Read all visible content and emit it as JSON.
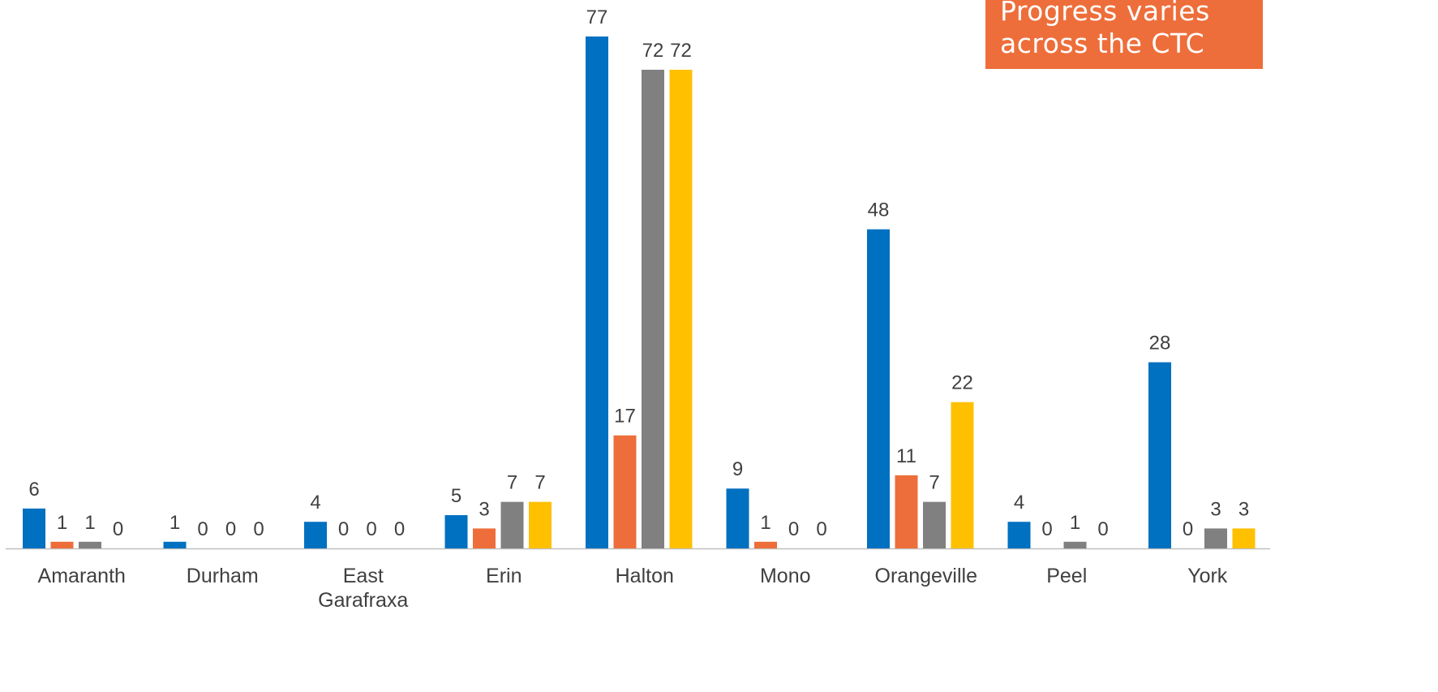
{
  "callout": {
    "line1": "Progress varies",
    "line2": "across the CTC"
  },
  "colors": {
    "series": [
      "#0070C0",
      "#ED6E3A",
      "#808080",
      "#FFC000"
    ],
    "axis": "#BFBFBF",
    "label": "#404040"
  },
  "chart_data": {
    "type": "bar",
    "title": "",
    "xlabel": "",
    "ylabel": "",
    "grid": false,
    "ylim": [
      0,
      77
    ],
    "categories": [
      "Amaranth",
      "Durham",
      "East Garafraxa",
      "Erin",
      "Halton",
      "Mono",
      "Orangeville",
      "Peel",
      "York"
    ],
    "series": [
      {
        "values": [
          6,
          1,
          4,
          5,
          77,
          9,
          48,
          4,
          28
        ]
      },
      {
        "values": [
          1,
          0,
          0,
          3,
          17,
          1,
          11,
          0,
          0
        ]
      },
      {
        "values": [
          1,
          0,
          0,
          7,
          72,
          0,
          7,
          1,
          3
        ]
      },
      {
        "values": [
          0,
          0,
          0,
          7,
          72,
          0,
          22,
          0,
          3
        ]
      }
    ]
  }
}
